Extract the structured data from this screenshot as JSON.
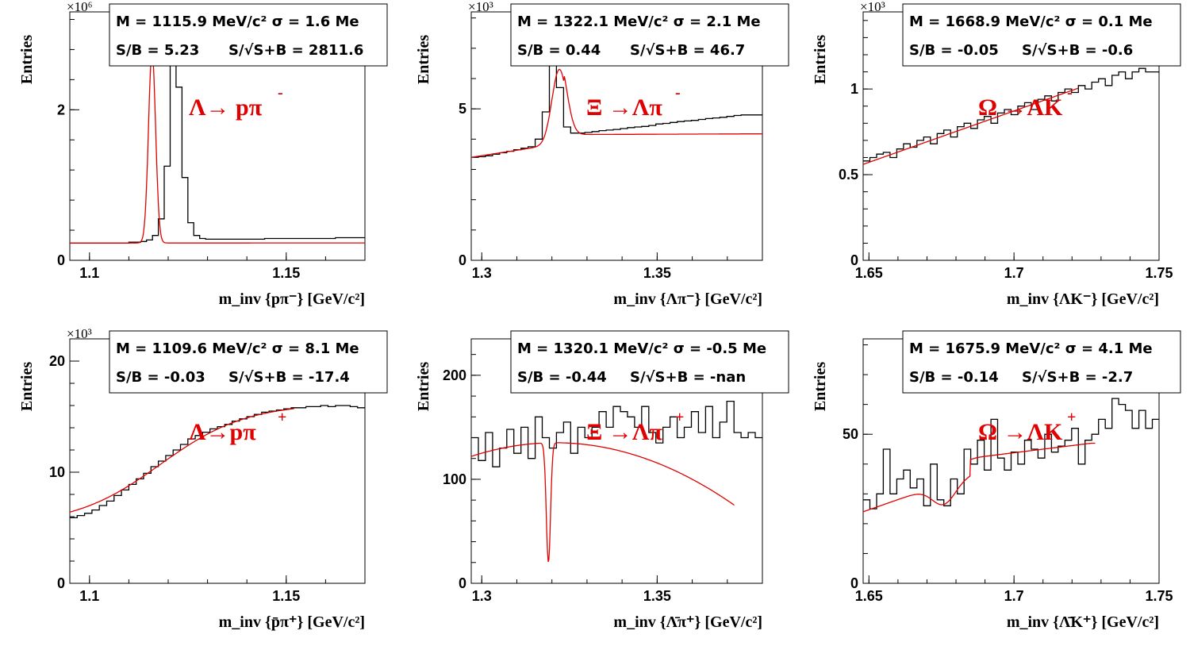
{
  "ylabel": "Entries",
  "chart_data": [
    {
      "type": "line",
      "panel": "Lambda",
      "decay_label": {
        "main": "Λ→ pπ",
        "sup": "-"
      },
      "stats": {
        "line1": "M = 1115.9 MeV/c² σ = 1.6 Me",
        "line2a": "S/B = 5.23",
        "line2b": "S/√S+B = 2811.6"
      },
      "multiplier": "×10⁶",
      "xlabel": "m_inv {pπ⁻} [GeV/c²]",
      "xlim": [
        1.095,
        1.17
      ],
      "ylim": [
        0,
        3.3
      ],
      "xticks": [
        1.1,
        1.15
      ],
      "yticks": [
        0,
        2
      ],
      "histogram": [
        0.23,
        0.23,
        0.23,
        0.23,
        0.23,
        0.23,
        0.23,
        0.23,
        0.23,
        0.23,
        0.24,
        0.24,
        0.25,
        0.27,
        0.33,
        0.55,
        1.25,
        2.95,
        2.3,
        1.1,
        0.5,
        0.33,
        0.29,
        0.28,
        0.28,
        0.28,
        0.28,
        0.28,
        0.28,
        0.28,
        0.28,
        0.28,
        0.28,
        0.29,
        0.29,
        0.29,
        0.29,
        0.29,
        0.29,
        0.29,
        0.29,
        0.29,
        0.29,
        0.29,
        0.29,
        0.3,
        0.3,
        0.3,
        0.3,
        0.3
      ],
      "fit": {
        "a": 0.23,
        "b": 0.008,
        "A": 2.55,
        "mu": 1.1159,
        "s": 0.0009,
        "x0": 1.095,
        "x1": 1.17
      }
    },
    {
      "type": "line",
      "panel": "Xi",
      "decay_label": {
        "main": "Ξ →Λπ",
        "sup": "-"
      },
      "stats": {
        "line1": "M = 1322.1 MeV/c² σ = 2.1 Me",
        "line2a": "S/B = 0.44",
        "line2b": "S/√S+B = 46.7"
      },
      "multiplier": "×10³",
      "xlabel": "m_inv {Λπ⁻} [GeV/c²]",
      "xlim": [
        1.297,
        1.38
      ],
      "ylim": [
        0,
        8.2
      ],
      "xticks": [
        1.3,
        1.35
      ],
      "yticks": [
        0,
        5
      ],
      "histogram": [
        3.4,
        3.42,
        3.45,
        3.5,
        3.55,
        3.6,
        3.65,
        3.7,
        3.75,
        4.0,
        4.9,
        6.6,
        5.7,
        4.4,
        4.2,
        4.2,
        4.22,
        4.25,
        4.28,
        4.3,
        4.32,
        4.35,
        4.38,
        4.4,
        4.42,
        4.45,
        4.5,
        4.52,
        4.55,
        4.58,
        4.6,
        4.62,
        4.65,
        4.68,
        4.7,
        4.72,
        4.75,
        4.78,
        4.8,
        4.8,
        4.8
      ],
      "fit": {
        "a": 3.4,
        "b": 18,
        "A": 2.45,
        "mu": 1.3221,
        "s": 0.0021,
        "x0": 1.297,
        "x1": 1.38,
        "cutoff": 1.3235,
        "a2": 4.15,
        "b2": 11
      }
    },
    {
      "type": "line",
      "panel": "Omega",
      "decay_label": {
        "main": "Ω →ΛK",
        "sup": "-"
      },
      "stats": {
        "line1": "M = 1668.9 MeV/c² σ = 0.1 Me",
        "line2a": "S/B = -0.05",
        "line2b": "S/√S+B = -0.6"
      },
      "multiplier": "×10³",
      "xlabel": "m_inv {ΛK⁻} [GeV/c²]",
      "xlim": [
        1.648,
        1.75
      ],
      "ylim": [
        0,
        1.45
      ],
      "xticks": [
        1.65,
        1.7,
        1.75
      ],
      "yticks": [
        0,
        0.5,
        1
      ],
      "histogram": [
        0.58,
        0.6,
        0.62,
        0.63,
        0.6,
        0.65,
        0.68,
        0.66,
        0.7,
        0.72,
        0.68,
        0.74,
        0.76,
        0.72,
        0.78,
        0.8,
        0.77,
        0.82,
        0.84,
        0.8,
        0.86,
        0.88,
        0.85,
        0.9,
        0.92,
        0.88,
        0.94,
        0.96,
        0.93,
        0.98,
        1.0,
        0.98,
        1.02,
        1.0,
        1.04,
        1.06,
        1.02,
        1.08,
        1.1,
        1.06,
        1.1,
        1.12,
        1.1,
        1.1
      ],
      "fit": {
        "a": 0.56,
        "b": 6.0,
        "A": 0,
        "mu": 1.6689,
        "s": 0.0001,
        "x0": 1.648,
        "x1": 1.722
      }
    },
    {
      "type": "line",
      "panel": "AntiLambda",
      "decay_label": {
        "main": "Λ→pπ",
        "sup": "+"
      },
      "stats": {
        "line1": "M = 1109.6 MeV/c² σ = 8.1 Me",
        "line2a": "S/B = -0.03",
        "line2b": "S/√S+B = -17.4"
      },
      "multiplier": "×10³",
      "xlabel": "m_inv {p̄π⁺} [GeV/c²]",
      "xlim": [
        1.095,
        1.17
      ],
      "ylim": [
        0,
        22
      ],
      "xticks": [
        1.1,
        1.15
      ],
      "yticks": [
        0,
        10,
        20
      ],
      "histogram": [
        5.9,
        6.1,
        6.3,
        6.6,
        7.0,
        7.4,
        7.9,
        8.4,
        8.9,
        9.4,
        9.9,
        10.5,
        11.0,
        11.5,
        12.0,
        12.5,
        13.0,
        13.3,
        13.6,
        13.9,
        14.1,
        14.3,
        14.6,
        14.8,
        15.0,
        15.2,
        15.4,
        15.5,
        15.6,
        15.7,
        15.8,
        15.8,
        15.9,
        15.9,
        16.0,
        15.9,
        16.0,
        16.0,
        15.9,
        15.8
      ],
      "fit": {
        "sigmoid": true,
        "lo": 5.2,
        "hi": 16.2,
        "c": 1.118,
        "w": 0.011,
        "x0": 1.095,
        "x1": 1.152
      }
    },
    {
      "type": "line",
      "panel": "AntiXi",
      "decay_label": {
        "main": "Ξ →Λπ",
        "sup": "+"
      },
      "stats": {
        "line1": "M = 1320.1 MeV/c² σ = -0.5 Me",
        "line2a": "S/B = -0.44",
        "line2b": "S/√S+B = -nan"
      },
      "multiplier": "",
      "xlabel": "m_inv {Λ̄π⁺} [GeV/c²]",
      "xlim": [
        1.297,
        1.38
      ],
      "ylim": [
        0,
        235
      ],
      "xticks": [
        1.3,
        1.35
      ],
      "yticks": [
        0,
        100,
        200
      ],
      "histogram": [
        140,
        118,
        145,
        112,
        130,
        148,
        125,
        150,
        120,
        160,
        140,
        130,
        145,
        155,
        125,
        150,
        140,
        150,
        165,
        150,
        170,
        165,
        160,
        150,
        170,
        145,
        135,
        150,
        160,
        140,
        150,
        165,
        145,
        170,
        140,
        155,
        175,
        145,
        140,
        145,
        140
      ],
      "fit": {
        "poly": true,
        "a": 122,
        "b": 1100,
        "c": -23000,
        "dip": -115,
        "mu": 1.319,
        "s": 0.0006,
        "x0": 1.297,
        "x1": 1.372
      }
    },
    {
      "type": "line",
      "panel": "AntiOmega",
      "decay_label": {
        "main": "Ω →ΛK",
        "sup": "+"
      },
      "stats": {
        "line1": "M = 1675.9 MeV/c² σ = 4.1 Me",
        "line2a": "S/B = -0.14",
        "line2b": "S/√S+B = -2.7"
      },
      "multiplier": "",
      "xlabel": "m_inv {Λ̄K⁺} [GeV/c²]",
      "xlim": [
        1.648,
        1.75
      ],
      "ylim": [
        0,
        82
      ],
      "xticks": [
        1.65,
        1.7,
        1.75
      ],
      "yticks": [
        0,
        50
      ],
      "histogram": [
        28,
        25,
        30,
        45,
        30,
        35,
        38,
        32,
        35,
        26,
        40,
        28,
        26,
        35,
        30,
        45,
        40,
        48,
        38,
        55,
        42,
        38,
        44,
        40,
        48,
        45,
        42,
        50,
        44,
        46,
        48,
        52,
        40,
        48,
        50,
        55,
        52,
        62,
        60,
        58,
        52,
        58,
        52,
        55
      ],
      "fit": {
        "poly2": true,
        "lo": 24,
        "slope": 340,
        "dip": -7,
        "mu": 1.6759,
        "s": 0.004,
        "x0": 1.648,
        "x1": 1.728,
        "plateau": 1.685,
        "plat": 42
      }
    }
  ]
}
